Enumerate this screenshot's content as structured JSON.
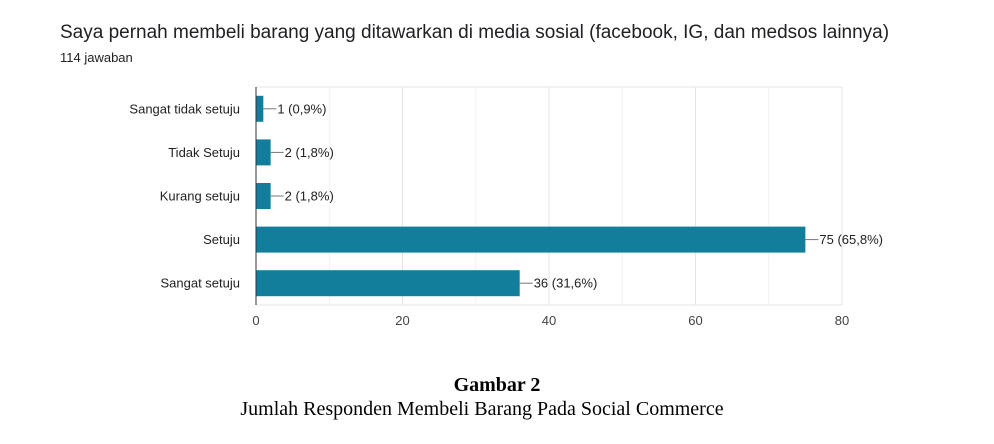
{
  "header": {
    "title": "Saya pernah membeli barang yang ditawarkan di media sosial (facebook, IG, dan medsos lainnya)",
    "subtitle": "114 jawaban"
  },
  "caption": {
    "title": "Gambar  2",
    "text": "Jumlah Responden Membeli Barang Pada Social Commerce"
  },
  "chart_data": {
    "type": "bar",
    "orientation": "horizontal",
    "categories": [
      "Sangat tidak setuju",
      "Tidak Setuju",
      "Kurang setuju",
      "Setuju",
      "Sangat setuju"
    ],
    "values": [
      1,
      2,
      2,
      75,
      36
    ],
    "data_labels": [
      "1 (0,9%)",
      "2 (1,8%)",
      "2 (1,8%)",
      "75 (65,8%)",
      "36 (31,6%)"
    ],
    "xlim": [
      0,
      80
    ],
    "xticks": [
      0,
      20,
      40,
      60,
      80
    ],
    "grid": true,
    "bar_color": "#137e9c"
  }
}
